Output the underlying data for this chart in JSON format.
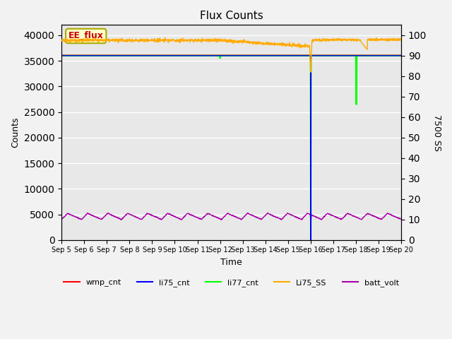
{
  "title": "Flux Counts",
  "xlabel": "Time",
  "ylabel_left": "Counts",
  "ylabel_right": "7500 SS",
  "annotation": "EE_flux",
  "annotation_color": "#cc0000",
  "annotation_bg": "#ffffcc",
  "annotation_border": "#aaaa00",
  "ylim_left": [
    0,
    42000
  ],
  "ylim_right": [
    0,
    105
  ],
  "yticks_left": [
    0,
    5000,
    10000,
    15000,
    20000,
    25000,
    30000,
    35000,
    40000
  ],
  "yticks_right": [
    0,
    10,
    20,
    30,
    40,
    50,
    60,
    70,
    80,
    90,
    100
  ],
  "x_tick_days": [
    5,
    6,
    7,
    8,
    9,
    10,
    11,
    12,
    13,
    14,
    15,
    16,
    17,
    18,
    19,
    20
  ],
  "fig_bg": "#f2f2f2",
  "plot_bg": "#e8e8e8",
  "grid_color": "#ffffff",
  "series": {
    "wmp_cnt": {
      "color": "#ff0000",
      "lw": 1.0
    },
    "li75_cnt": {
      "color": "#0000ff",
      "lw": 1.0
    },
    "li77_cnt": {
      "color": "#00ff00",
      "lw": 1.5
    },
    "Li75_SS": {
      "color": "#ffaa00",
      "lw": 1.0
    },
    "batt_volt": {
      "color": "#aa00aa",
      "lw": 1.0
    }
  },
  "li77_base": 36000,
  "batt_base": 4000,
  "batt_peak": 5200,
  "li75ss_base": 97.5,
  "spike_day": 11
}
